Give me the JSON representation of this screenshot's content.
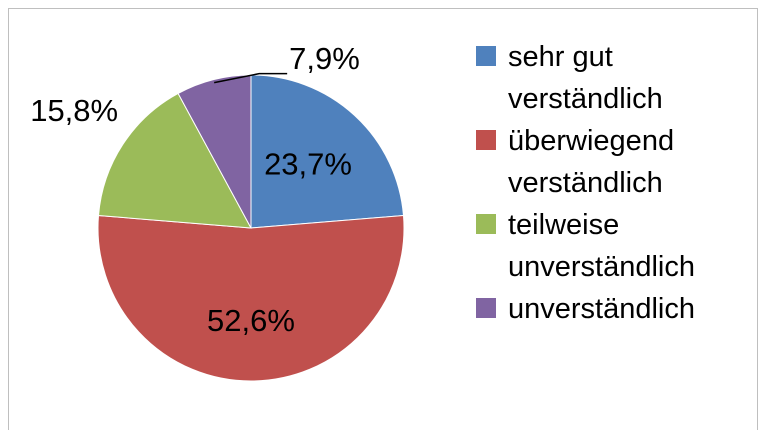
{
  "chart_data": {
    "type": "pie",
    "categories": [
      "sehr gut verständlich",
      "überwiegend verständlich",
      "teilweise unverständlich",
      "unverständlich"
    ],
    "values": [
      23.7,
      52.6,
      15.8,
      7.9
    ],
    "value_labels": [
      "23,7%",
      "52,6%",
      "15,8%",
      "7,9%"
    ],
    "colors": [
      "#4f81bd",
      "#c0504d",
      "#9bbb59",
      "#8064a2"
    ],
    "legend": "right"
  }
}
